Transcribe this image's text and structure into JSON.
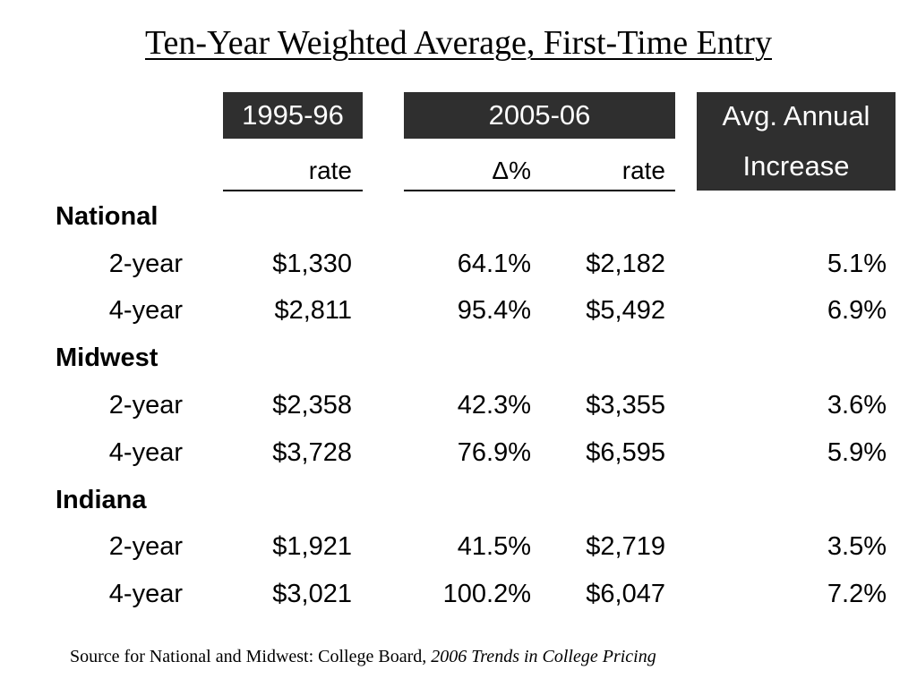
{
  "title": "Ten-Year Weighted Average, First-Time Entry",
  "header": {
    "col1_top": "1995-96",
    "col2_top": "2005-06",
    "col3_top": "Avg. Annual",
    "col1_sub": "rate",
    "col2_sub_delta": "Δ%",
    "col2_sub_rate": "rate",
    "col3_sub": "Increase"
  },
  "groups": [
    {
      "name": "National",
      "rows": [
        {
          "label": "2-year",
          "rate1995": "$1,330",
          "delta": "64.1%",
          "rate2005": "$2,182",
          "avg": "5.1%"
        },
        {
          "label": "4-year",
          "rate1995": "$2,811",
          "delta": "95.4%",
          "rate2005": "$5,492",
          "avg": "6.9%"
        }
      ]
    },
    {
      "name": "Midwest",
      "rows": [
        {
          "label": "2-year",
          "rate1995": "$2,358",
          "delta": "42.3%",
          "rate2005": "$3,355",
          "avg": "3.6%"
        },
        {
          "label": "4-year",
          "rate1995": "$3,728",
          "delta": "76.9%",
          "rate2005": "$6,595",
          "avg": "5.9%"
        }
      ]
    },
    {
      "name": "Indiana",
      "rows": [
        {
          "label": "2-year",
          "rate1995": "$1,921",
          "delta": "41.5%",
          "rate2005": "$2,719",
          "avg": "3.5%"
        },
        {
          "label": "4-year",
          "rate1995": "$3,021",
          "delta": "100.2%",
          "rate2005": "$6,047",
          "avg": "7.2%"
        }
      ]
    }
  ],
  "source": {
    "text": "Source for National and Midwest: College Board,",
    "italic": "2006 Trends in College Pricing"
  }
}
